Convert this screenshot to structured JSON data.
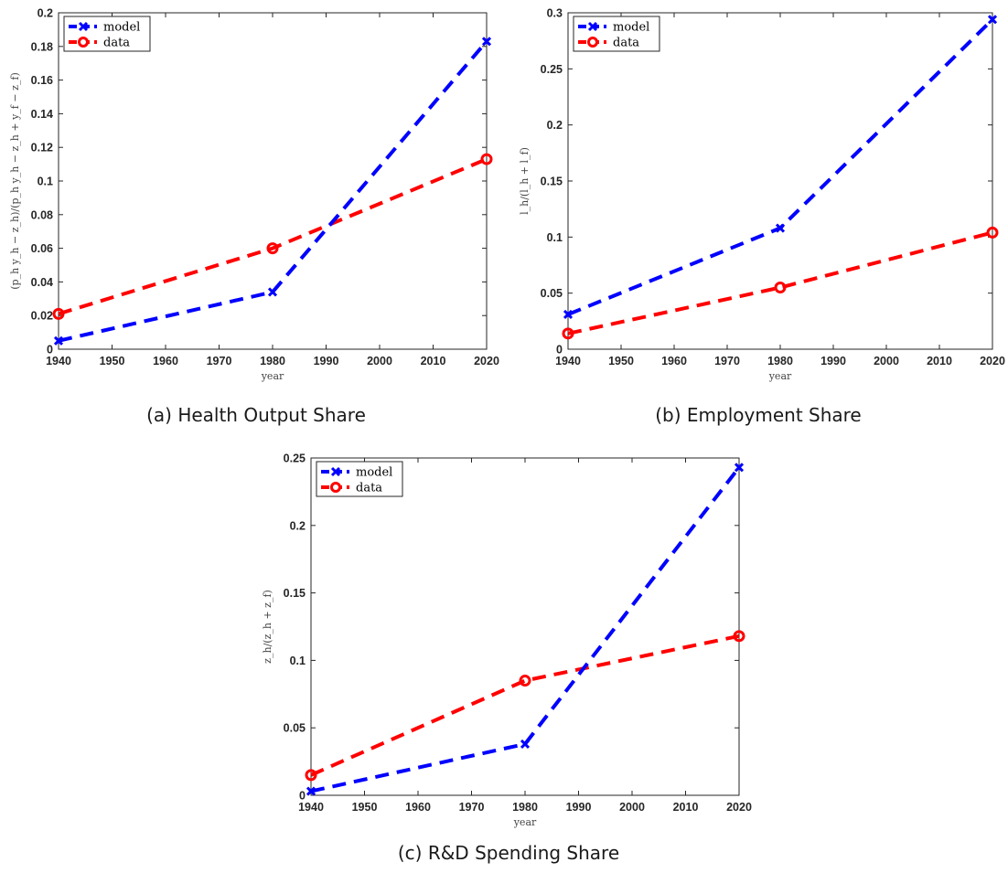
{
  "colors": {
    "model": "#0000ff",
    "data": "#ff0000",
    "axis": "#262626"
  },
  "chart_data": [
    {
      "type": "line",
      "caption": "(a) Health Output Share",
      "xlabel": "year",
      "ylabel": "(p_h y_h − z_h)/(p_h y_h − z_h + y_f − z_f)",
      "xlim": [
        1940,
        2020
      ],
      "ylim": [
        0,
        0.2
      ],
      "xticks": [
        1940,
        1950,
        1960,
        1970,
        1980,
        1990,
        2000,
        2010,
        2020
      ],
      "yticks": [
        0,
        0.02,
        0.04,
        0.06,
        0.08,
        0.1,
        0.12,
        0.14,
        0.16,
        0.18,
        0.2
      ],
      "grid": false,
      "legend": "top-left",
      "series": [
        {
          "name": "model",
          "marker": "x",
          "x": [
            1940,
            1980,
            2020
          ],
          "y": [
            0.005,
            0.034,
            0.183
          ]
        },
        {
          "name": "data",
          "marker": "o",
          "x": [
            1940,
            1980,
            2020
          ],
          "y": [
            0.021,
            0.06,
            0.113
          ]
        }
      ]
    },
    {
      "type": "line",
      "caption": "(b) Employment Share",
      "xlabel": "year",
      "ylabel": "l_h/(l_h + l_f)",
      "xlim": [
        1940,
        2020
      ],
      "ylim": [
        0,
        0.3
      ],
      "xticks": [
        1940,
        1950,
        1960,
        1970,
        1980,
        1990,
        2000,
        2010,
        2020
      ],
      "yticks": [
        0,
        0.05,
        0.1,
        0.15,
        0.2,
        0.25,
        0.3
      ],
      "grid": false,
      "legend": "top-left",
      "series": [
        {
          "name": "model",
          "marker": "x",
          "x": [
            1940,
            1980,
            2020
          ],
          "y": [
            0.031,
            0.108,
            0.294
          ]
        },
        {
          "name": "data",
          "marker": "o",
          "x": [
            1940,
            1980,
            2020
          ],
          "y": [
            0.014,
            0.055,
            0.104
          ]
        }
      ]
    },
    {
      "type": "line",
      "caption": "(c) R&D Spending Share",
      "xlabel": "year",
      "ylabel": "z_h/(z_h + z_f)",
      "xlim": [
        1940,
        2020
      ],
      "ylim": [
        0,
        0.25
      ],
      "xticks": [
        1940,
        1950,
        1960,
        1970,
        1980,
        1990,
        2000,
        2010,
        2020
      ],
      "yticks": [
        0,
        0.05,
        0.1,
        0.15,
        0.2,
        0.25
      ],
      "grid": false,
      "legend": "top-left",
      "series": [
        {
          "name": "model",
          "marker": "x",
          "x": [
            1940,
            1980,
            2020
          ],
          "y": [
            0.003,
            0.038,
            0.243
          ]
        },
        {
          "name": "data",
          "marker": "o",
          "x": [
            1940,
            1980,
            2020
          ],
          "y": [
            0.015,
            0.085,
            0.118
          ]
        }
      ]
    }
  ]
}
